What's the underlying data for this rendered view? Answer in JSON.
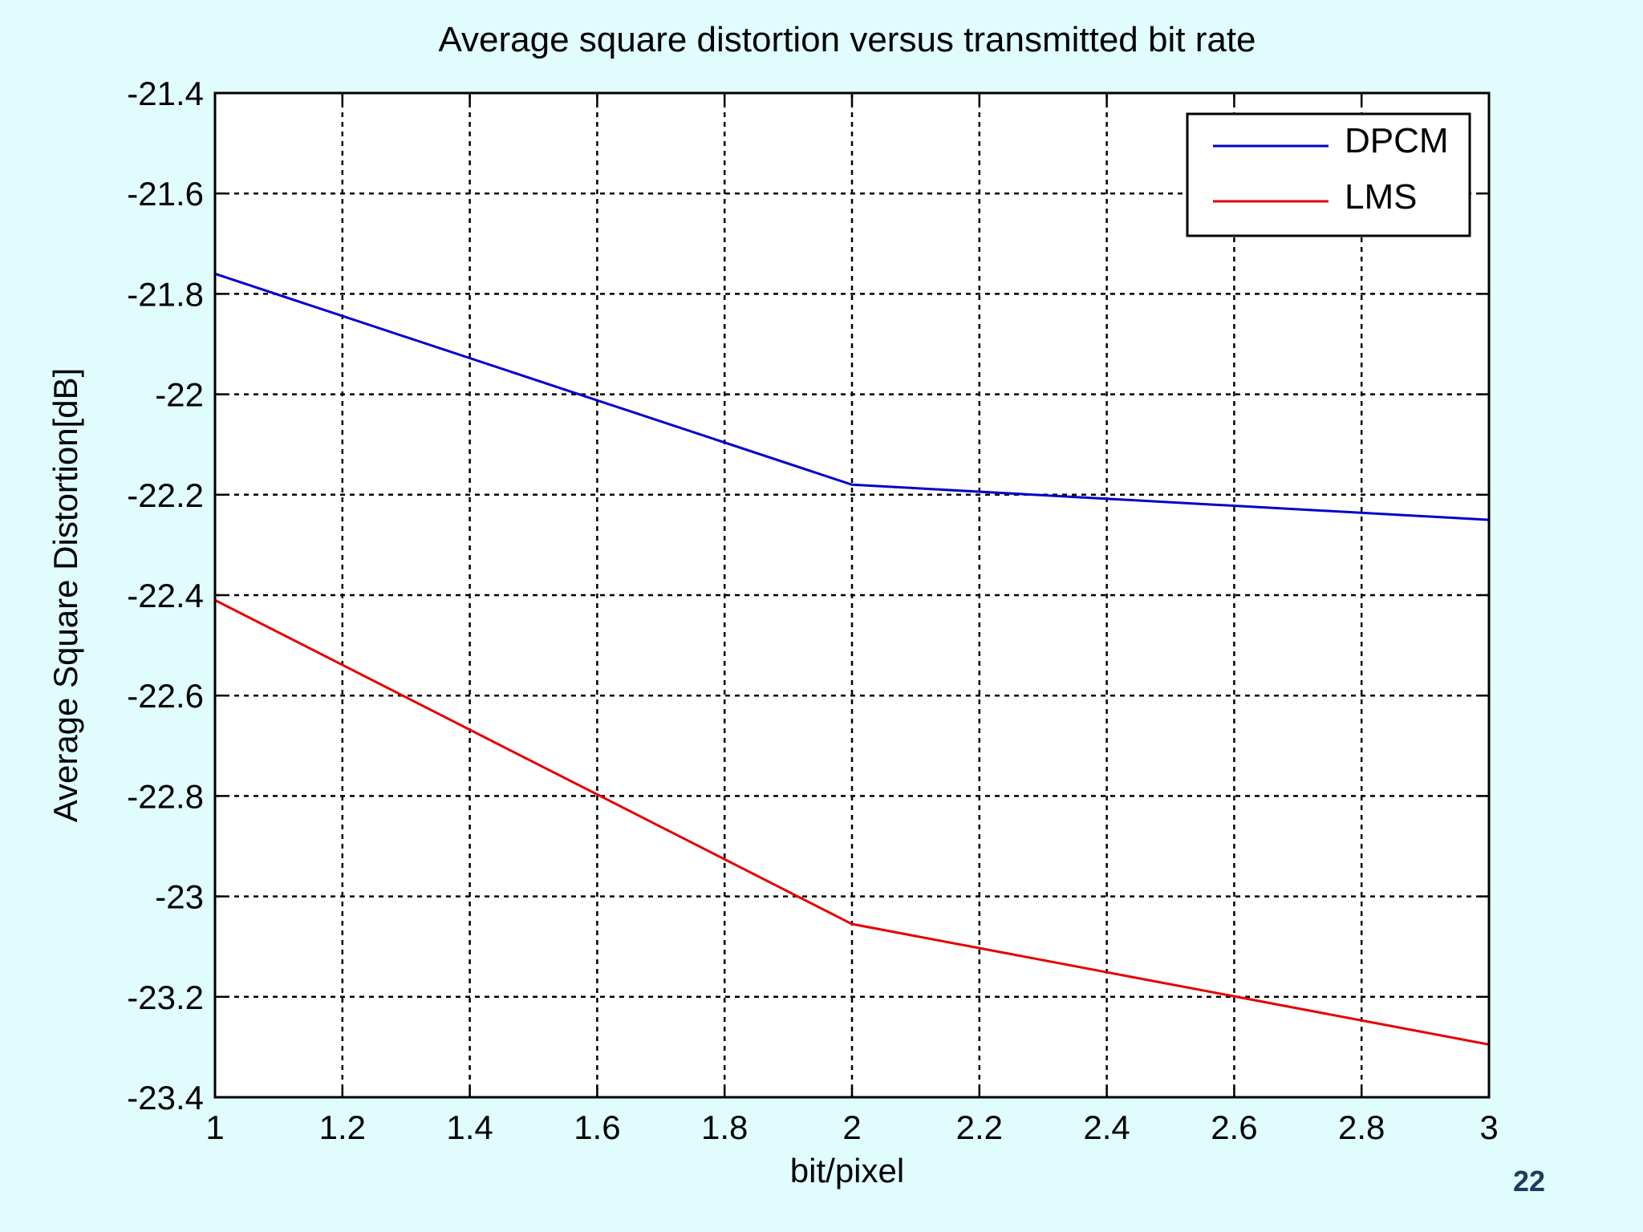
{
  "chart_data": {
    "type": "line",
    "title": "Average square distortion versus transmitted bit rate",
    "xlabel": "bit/pixel",
    "ylabel": "Average Square Distortion[dB]",
    "xlim": [
      1,
      3
    ],
    "ylim": [
      -23.4,
      -21.4
    ],
    "xticks": [
      "1",
      "1.2",
      "1.4",
      "1.6",
      "1.8",
      "2",
      "2.2",
      "2.4",
      "2.6",
      "2.8",
      "3"
    ],
    "xtick_values": [
      1,
      1.2,
      1.4,
      1.6,
      1.8,
      2,
      2.2,
      2.4,
      2.6,
      2.8,
      3
    ],
    "yticks": [
      "-21.4",
      "-21.6",
      "-21.8",
      "-22",
      "-22.2",
      "-22.4",
      "-22.6",
      "-22.8",
      "-23",
      "-23.2",
      "-23.4"
    ],
    "ytick_values": [
      -21.4,
      -21.6,
      -21.8,
      -22,
      -22.2,
      -22.4,
      -22.6,
      -22.8,
      -23,
      -23.2,
      -23.4
    ],
    "grid": true,
    "legend_position": "top-right",
    "series": [
      {
        "name": "DPCM",
        "color": "#0000cc",
        "x": [
          1,
          2,
          3
        ],
        "y": [
          -21.76,
          -22.18,
          -22.25
        ]
      },
      {
        "name": "LMS",
        "color": "#e60000",
        "x": [
          1,
          2,
          3
        ],
        "y": [
          -22.41,
          -23.055,
          -23.295
        ]
      }
    ]
  },
  "page": {
    "number": "22"
  }
}
